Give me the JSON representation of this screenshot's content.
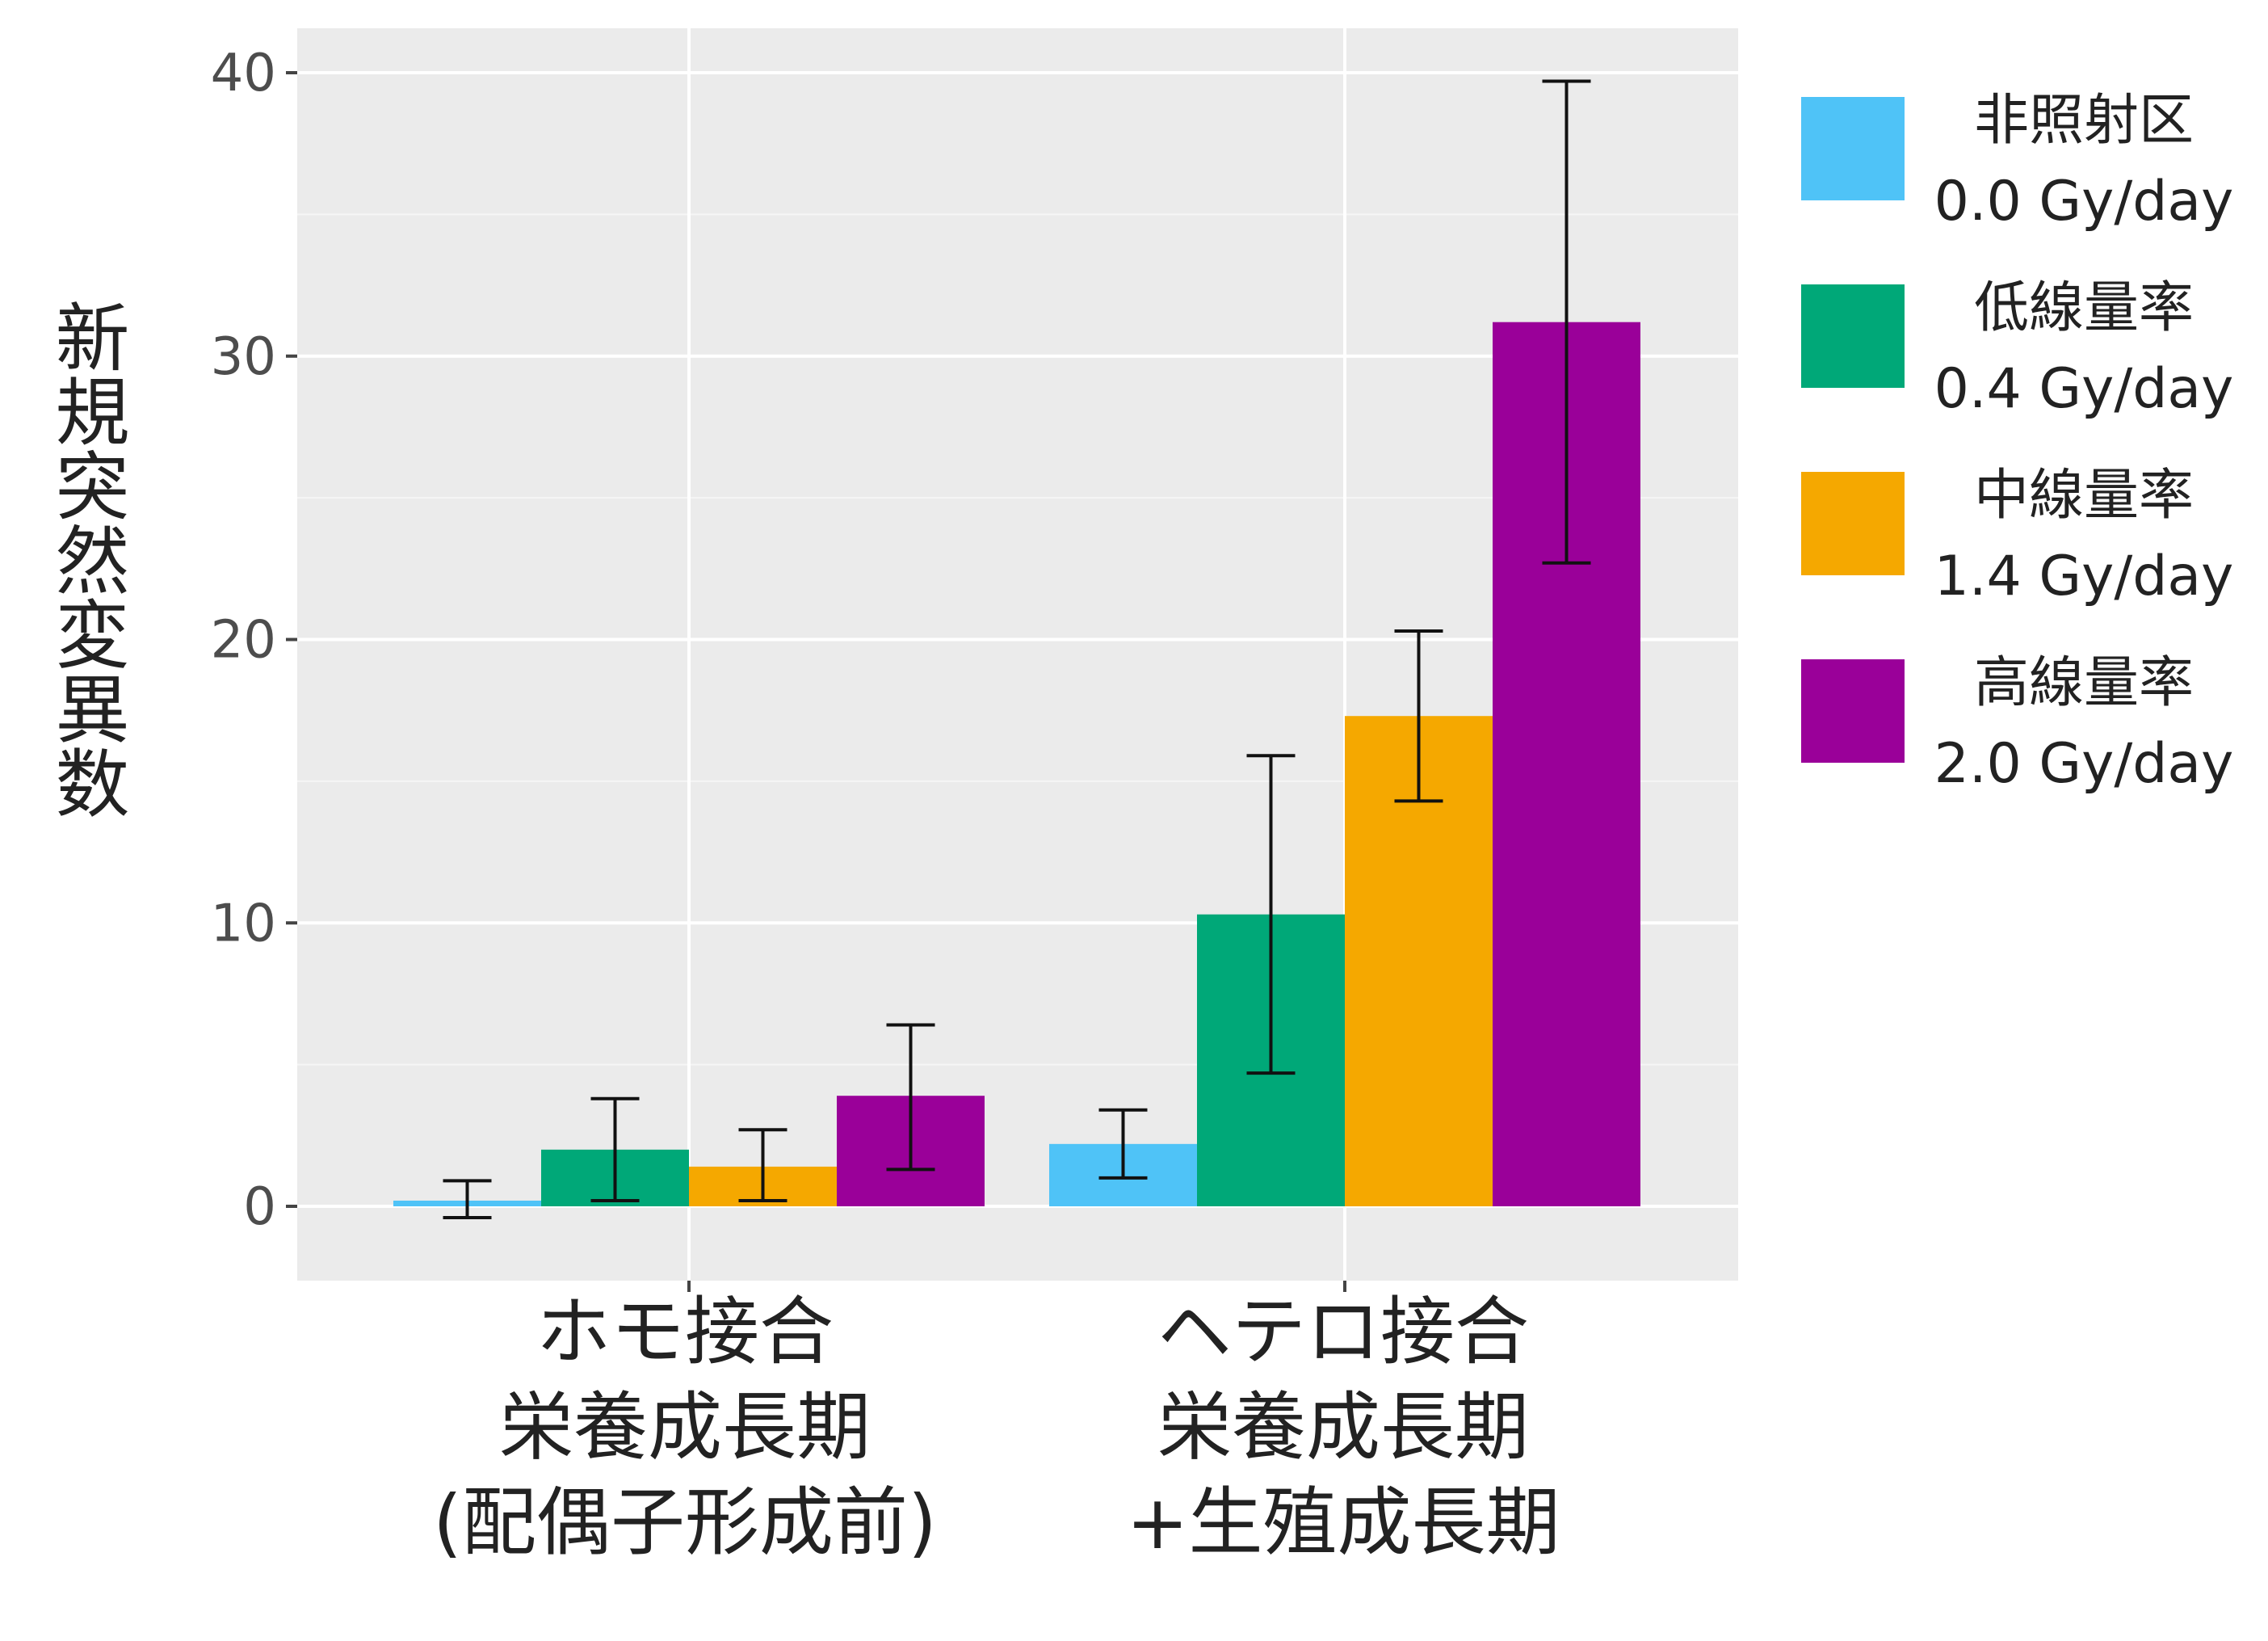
{
  "chart_data": {
    "type": "bar",
    "ylabel": "新規突然変異数",
    "xlabel": "",
    "ylim": [
      -2.5,
      41
    ],
    "yticks": [
      0,
      10,
      20,
      30,
      40
    ],
    "grid": true,
    "legend_position": "right",
    "categories": [
      {
        "lines": [
          "ホモ接合",
          "栄養成長期",
          "(配偶子形成前)"
        ]
      },
      {
        "lines": [
          "ヘテロ接合",
          "栄養成長期",
          "+生殖成長期"
        ]
      }
    ],
    "series": [
      {
        "name_line1": "非照射区",
        "name_line2": "0.0 Gy/day",
        "color": "#4fc3f7",
        "values": [
          0.2,
          2.2
        ],
        "err_low": [
          -0.4,
          1.0
        ],
        "err_high": [
          0.9,
          3.4
        ]
      },
      {
        "name_line1": "低線量率",
        "name_line2": "0.4 Gy/day",
        "color": "#00a878",
        "values": [
          2.0,
          10.3
        ],
        "err_low": [
          0.2,
          4.7
        ],
        "err_high": [
          3.8,
          15.9
        ]
      },
      {
        "name_line1": "中線量率",
        "name_line2": "1.4 Gy/day",
        "color": "#f5a800",
        "values": [
          1.4,
          17.3
        ],
        "err_low": [
          0.2,
          14.3
        ],
        "err_high": [
          2.7,
          20.3
        ]
      },
      {
        "name_line1": "高線量率",
        "name_line2": "2.0 Gy/day",
        "color": "#9a0099",
        "values": [
          3.9,
          31.2
        ],
        "err_low": [
          1.3,
          22.7
        ],
        "err_high": [
          6.4,
          39.7
        ]
      }
    ]
  }
}
